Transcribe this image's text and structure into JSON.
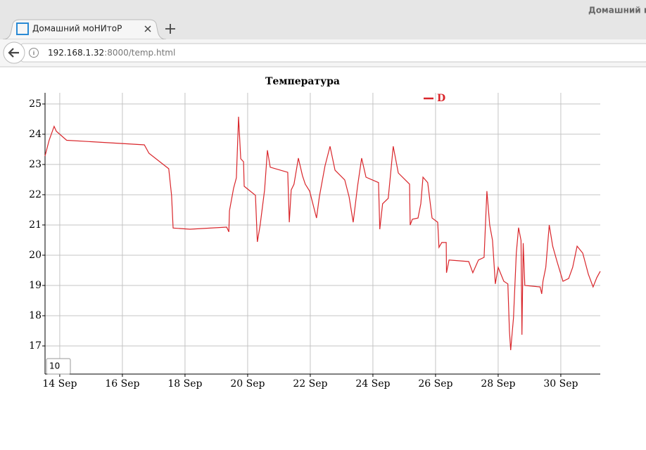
{
  "window": {
    "title": "Домашний м"
  },
  "tab": {
    "title": "Домашний моНИтоР"
  },
  "address": {
    "host": "192.168.1.32",
    "path": ":8000/temp.html"
  },
  "roller": "10",
  "chart_data": {
    "type": "line",
    "title": "Температура",
    "x": [
      13.53,
      13.66,
      13.82,
      13.89,
      14.22,
      16.7,
      16.85,
      17.48,
      17.57,
      17.62,
      18.16,
      19.33,
      19.4,
      19.42,
      19.55,
      19.64,
      19.71,
      19.78,
      19.87,
      19.89,
      20.25,
      20.31,
      20.4,
      20.54,
      20.63,
      20.72,
      21.28,
      21.33,
      21.39,
      21.48,
      21.62,
      21.75,
      21.84,
      21.98,
      22.2,
      22.29,
      22.47,
      22.63,
      22.79,
      23.1,
      23.24,
      23.37,
      23.51,
      23.64,
      23.78,
      24.18,
      24.22,
      24.31,
      24.49,
      24.65,
      24.81,
      25.17,
      25.19,
      25.26,
      25.44,
      25.53,
      25.6,
      25.75,
      25.89,
      26.07,
      26.11,
      26.2,
      26.34,
      26.35,
      26.43,
      27.06,
      27.19,
      27.37,
      27.55,
      27.64,
      27.73,
      27.82,
      27.91,
      28.0,
      28.18,
      28.31,
      28.36,
      28.4,
      28.49,
      28.58,
      28.65,
      28.73,
      28.76,
      28.8,
      28.85,
      29.34,
      29.39,
      29.43,
      29.52,
      29.63,
      29.74,
      29.88,
      30.07,
      30.25,
      30.38,
      30.52,
      30.7,
      30.88,
      31.03,
      31.15,
      31.26
    ],
    "series": [
      {
        "name": "D",
        "color": "#d9262b",
        "values": [
          23.28,
          23.8,
          24.26,
          24.1,
          23.8,
          23.65,
          23.37,
          22.86,
          21.98,
          20.9,
          20.86,
          20.93,
          20.77,
          21.47,
          22.21,
          22.56,
          24.58,
          23.19,
          23.09,
          22.28,
          21.98,
          20.44,
          21.0,
          22.16,
          23.47,
          22.91,
          22.74,
          21.09,
          22.16,
          22.35,
          23.21,
          22.63,
          22.35,
          22.12,
          21.23,
          21.93,
          22.95,
          23.6,
          22.81,
          22.49,
          21.93,
          21.09,
          22.28,
          23.21,
          22.58,
          22.4,
          20.86,
          21.7,
          21.88,
          23.6,
          22.72,
          22.35,
          21.0,
          21.19,
          21.23,
          21.7,
          22.58,
          22.4,
          21.23,
          21.09,
          20.26,
          20.42,
          20.42,
          19.42,
          19.84,
          19.79,
          19.42,
          19.84,
          19.93,
          22.12,
          21.0,
          20.49,
          19.05,
          19.6,
          19.14,
          19.05,
          17.51,
          16.86,
          17.93,
          20.07,
          20.91,
          20.49,
          17.37,
          20.4,
          19.0,
          18.95,
          18.72,
          19.14,
          19.6,
          21.0,
          20.3,
          19.79,
          19.14,
          19.23,
          19.6,
          20.3,
          20.07,
          19.37,
          18.95,
          19.26,
          19.47
        ]
      }
    ],
    "xlim": [
      13.53,
      31.26
    ],
    "xticks": [
      {
        "value": 14,
        "label": "14 Sep"
      },
      {
        "value": 16,
        "label": "16 Sep"
      },
      {
        "value": 18,
        "label": "18 Sep"
      },
      {
        "value": 20,
        "label": "20 Sep"
      },
      {
        "value": 22,
        "label": "22 Sep"
      },
      {
        "value": 24,
        "label": "24 Sep"
      },
      {
        "value": 26,
        "label": "26 Sep"
      },
      {
        "value": 28,
        "label": "28 Sep"
      },
      {
        "value": 30,
        "label": "30 Sep"
      }
    ],
    "ylim": [
      16.07,
      25.37
    ],
    "yticks": [
      17,
      18,
      19,
      20,
      21,
      22,
      23,
      24,
      25
    ],
    "grid": true,
    "legend": "top-right"
  }
}
